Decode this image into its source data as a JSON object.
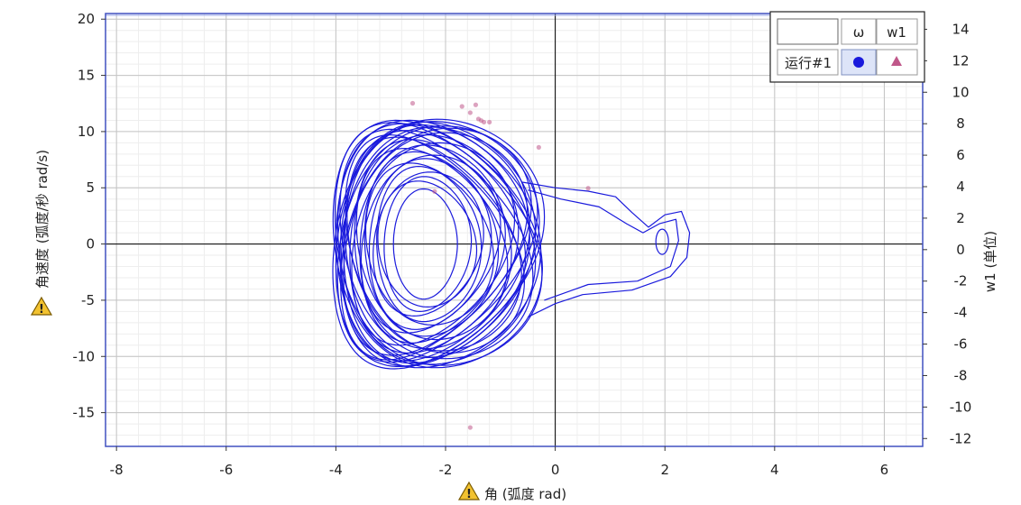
{
  "chart_data": {
    "type": "line",
    "xlabel": "角 (弧度 rad)",
    "ylabel": "角速度 (弧度/秒 rad/s)",
    "y2label": "w1 (单位)",
    "xlim": [
      -8.2,
      6.7
    ],
    "ylim": [
      -18,
      20.5
    ],
    "y2lim": [
      -12.5,
      15
    ],
    "x_ticks": [
      -8,
      -6,
      -4,
      -2,
      0,
      2,
      4,
      6
    ],
    "y_ticks": [
      -15,
      -10,
      -5,
      0,
      5,
      10,
      15,
      20
    ],
    "y2_ticks": [
      -12,
      -10,
      -8,
      -6,
      -4,
      -2,
      0,
      2,
      4,
      6,
      8,
      10,
      12,
      14
    ],
    "grid": true,
    "legend_position": "top-right",
    "legend": {
      "header_blank": "",
      "columns": [
        "ω",
        "w1"
      ],
      "row_label": "运行#1"
    },
    "series": [
      {
        "name": "ω",
        "color": "#1a1adc",
        "marker": "circle",
        "style": "line",
        "description_points": "trajectory in phase space centered near (-2.4, 0)"
      },
      {
        "name": "w1",
        "color": "#c0588a",
        "marker": "triangle",
        "style": "scatter",
        "x": [
          -2.6,
          -1.7,
          -1.55,
          -1.45,
          -1.4,
          -1.35,
          -1.3,
          -1.2,
          -0.3,
          -2.2,
          0.6,
          -1.55
        ],
        "y": [
          9.3,
          9.1,
          8.7,
          9.2,
          8.3,
          8.2,
          8.1,
          8.1,
          6.5,
          3.7,
          3.9,
          -11.3
        ]
      }
    ],
    "warnings": [
      "warning-icon",
      "warning-icon"
    ]
  }
}
